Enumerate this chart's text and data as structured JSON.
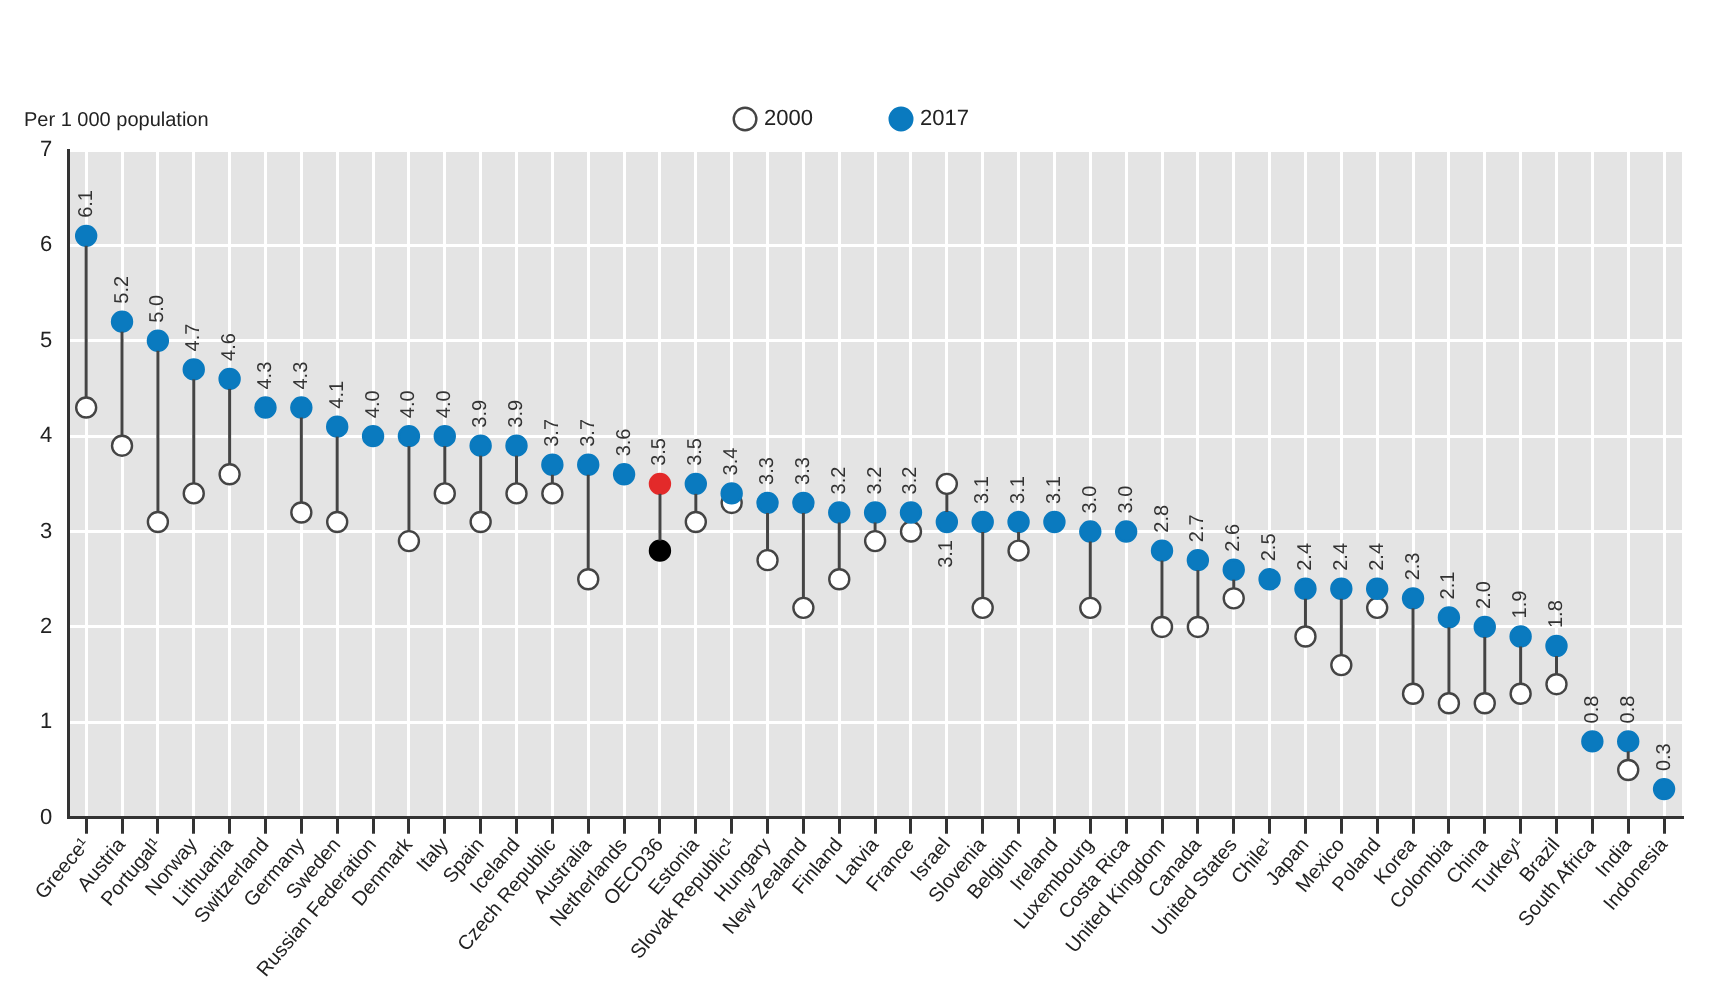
{
  "chart_data": {
    "type": "scatter",
    "ylabel": "Per 1 000 population",
    "categories": [
      "Greece¹",
      "Austria",
      "Portugal¹",
      "Norway",
      "Lithuania",
      "Switzerland",
      "Germany",
      "Sweden",
      "Russian Federation",
      "Denmark",
      "Italy",
      "Spain",
      "Iceland",
      "Czech Republic",
      "Australia",
      "Netherlands",
      "OECD36",
      "Estonia",
      "Slovak Republic¹",
      "Hungary",
      "New Zealand",
      "Finland",
      "Latvia",
      "France",
      "Israel",
      "Slovenia",
      "Belgium",
      "Ireland",
      "Luxembourg",
      "Costa Rica",
      "United Kingdom",
      "Canada",
      "United States",
      "Chile¹",
      "Japan",
      "Mexico",
      "Poland",
      "Korea",
      "Colombia",
      "China",
      "Turkey¹",
      "Brazil",
      "South Africa",
      "India",
      "Indonesia"
    ],
    "series": [
      {
        "name": "2000",
        "color": "#ffffff",
        "colors": [
          "#ffffff",
          "#ffffff",
          "#ffffff",
          "#ffffff",
          "#ffffff",
          "#ffffff",
          "#ffffff",
          "#ffffff",
          "#ffffff",
          "#ffffff",
          "#ffffff",
          "#ffffff",
          "#ffffff",
          "#ffffff",
          "#ffffff",
          "#ffffff",
          "#000000",
          "#ffffff",
          "#ffffff",
          "#ffffff",
          "#ffffff",
          "#ffffff",
          "#ffffff",
          "#ffffff",
          "#ffffff",
          "#ffffff",
          "#ffffff",
          "#ffffff",
          "#ffffff",
          "#ffffff",
          "#ffffff",
          "#ffffff",
          "#ffffff",
          "#ffffff",
          "#ffffff",
          "#ffffff",
          "#ffffff",
          "#ffffff",
          "#ffffff",
          "#ffffff",
          "#ffffff",
          "#ffffff",
          "#ffffff",
          "#ffffff",
          "#ffffff"
        ],
        "values": [
          4.3,
          3.9,
          3.1,
          3.4,
          3.6,
          null,
          3.2,
          3.1,
          null,
          2.9,
          3.4,
          3.1,
          3.4,
          3.4,
          2.5,
          null,
          2.8,
          3.1,
          3.3,
          2.7,
          2.2,
          2.5,
          2.9,
          3.0,
          3.5,
          2.2,
          2.8,
          null,
          2.2,
          null,
          2.0,
          2.0,
          2.3,
          null,
          1.9,
          1.6,
          2.2,
          1.3,
          1.2,
          1.2,
          1.3,
          1.4,
          null,
          0.5,
          null
        ]
      },
      {
        "name": "2017",
        "color": "#0a7abf",
        "colors": [
          "#0a7abf",
          "#0a7abf",
          "#0a7abf",
          "#0a7abf",
          "#0a7abf",
          "#0a7abf",
          "#0a7abf",
          "#0a7abf",
          "#0a7abf",
          "#0a7abf",
          "#0a7abf",
          "#0a7abf",
          "#0a7abf",
          "#0a7abf",
          "#0a7abf",
          "#0a7abf",
          "#e32a2a",
          "#0a7abf",
          "#0a7abf",
          "#0a7abf",
          "#0a7abf",
          "#0a7abf",
          "#0a7abf",
          "#0a7abf",
          "#0a7abf",
          "#0a7abf",
          "#0a7abf",
          "#0a7abf",
          "#0a7abf",
          "#0a7abf",
          "#0a7abf",
          "#0a7abf",
          "#0a7abf",
          "#0a7abf",
          "#0a7abf",
          "#0a7abf",
          "#0a7abf",
          "#0a7abf",
          "#0a7abf",
          "#0a7abf",
          "#0a7abf",
          "#0a7abf",
          "#0a7abf",
          "#0a7abf",
          "#0a7abf"
        ],
        "values": [
          6.1,
          5.2,
          5.0,
          4.7,
          4.6,
          4.3,
          4.3,
          4.1,
          4.0,
          4.0,
          4.0,
          3.9,
          3.9,
          3.7,
          3.7,
          3.6,
          3.5,
          3.5,
          3.4,
          3.3,
          3.3,
          3.2,
          3.2,
          3.2,
          3.1,
          3.1,
          3.1,
          3.1,
          3.0,
          3.0,
          2.8,
          2.7,
          2.6,
          2.5,
          2.4,
          2.4,
          2.4,
          2.3,
          2.1,
          2.0,
          1.9,
          1.8,
          0.8,
          0.8,
          0.3
        ],
        "value_labels": [
          "6.1",
          "5.2",
          "5.0",
          "4.7",
          "4.6",
          "4.3",
          "4.3",
          "4.1",
          "4.0",
          "4.0",
          "4.0",
          "3.9",
          "3.9",
          "3.7",
          "3.7",
          "3.6",
          "3.5",
          "3.5",
          "3.4",
          "3.3",
          "3.3",
          "3.2",
          "3.2",
          "3.2",
          "3.1",
          "3.1",
          "3.1",
          "3.1",
          "3.0",
          "3.0",
          "2.8",
          "2.7",
          "2.6",
          "2.5",
          "2.4",
          "2.4",
          "2.4",
          "2.3",
          "2.1",
          "2.0",
          "1.9",
          "1.8",
          "0.8",
          "0.8",
          "0.3"
        ]
      }
    ],
    "ylim": [
      0,
      7
    ],
    "yticks": [
      0,
      1,
      2,
      3,
      4,
      5,
      6,
      7
    ],
    "grid": true,
    "legend": "top",
    "marker": "circle"
  }
}
